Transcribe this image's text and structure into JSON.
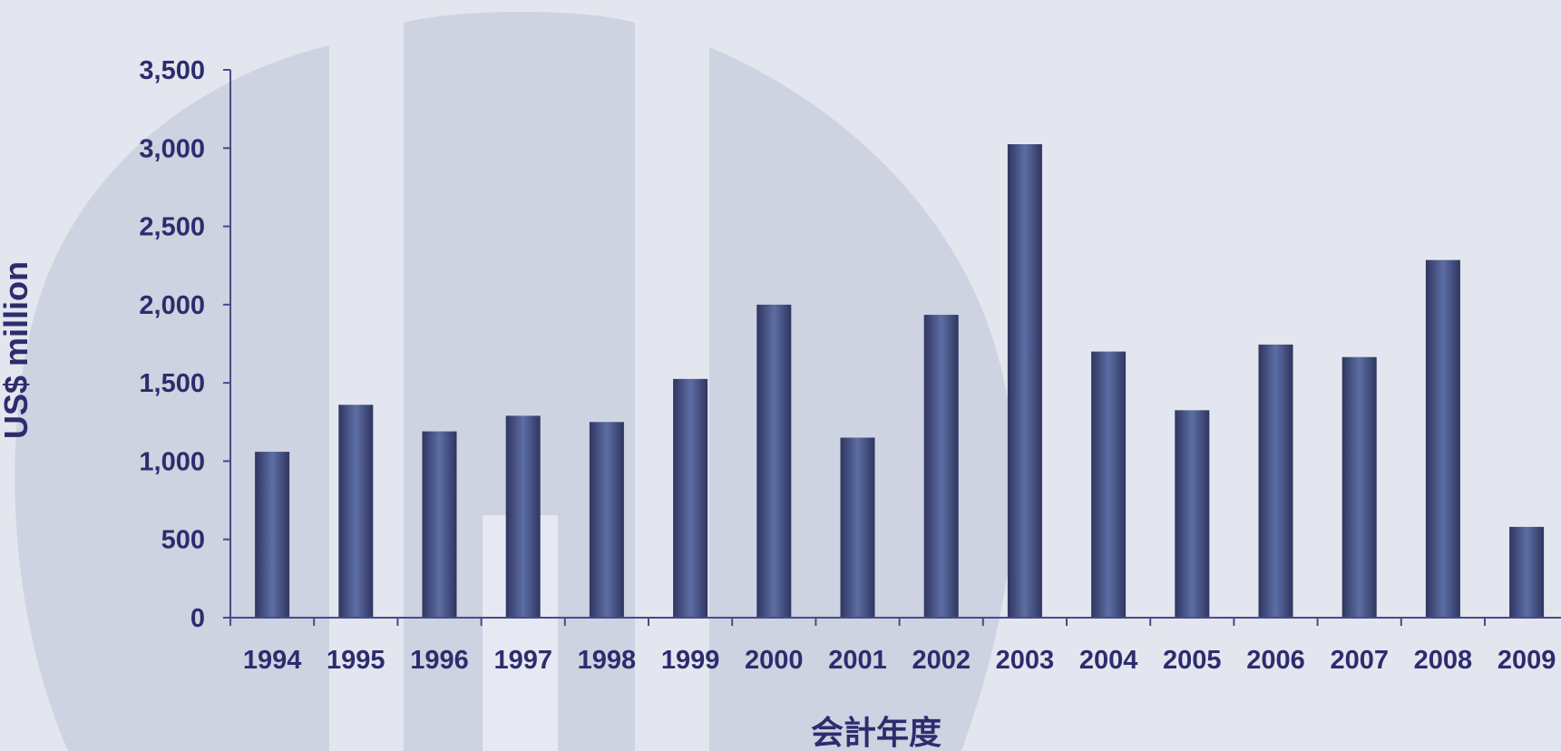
{
  "chart_data": {
    "type": "bar",
    "title": "",
    "xlabel": "会計年度",
    "ylabel": "US$ million",
    "categories": [
      "1994",
      "1995",
      "1996",
      "1997",
      "1998",
      "1999",
      "2000",
      "2001",
      "2002",
      "2003",
      "2004",
      "2005",
      "2006",
      "2007",
      "2008",
      "2009"
    ],
    "series": [
      {
        "values": [
          1060,
          1360,
          1190,
          1290,
          1250,
          1525,
          2000,
          1150,
          1935,
          3025,
          1700,
          1325,
          1745,
          1665,
          2285,
          580
        ]
      }
    ],
    "ylim": [
      0,
      3500
    ],
    "yticks": [
      0,
      500,
      1000,
      1500,
      2000,
      2500,
      3000,
      3500
    ],
    "ytick_labels": [
      "0",
      "500",
      "1,000",
      "1,500",
      "2,000",
      "2,500",
      "3,000",
      "3,500"
    ],
    "grid": false,
    "legend": "none",
    "colors": {
      "background": "#e3e6ee",
      "watermark": "#cdd3e0",
      "bar_dark": "#2f3560",
      "bar_light": "#5d6ea4",
      "axis": "#4a4a8a",
      "text": "#2e2c6e"
    }
  }
}
